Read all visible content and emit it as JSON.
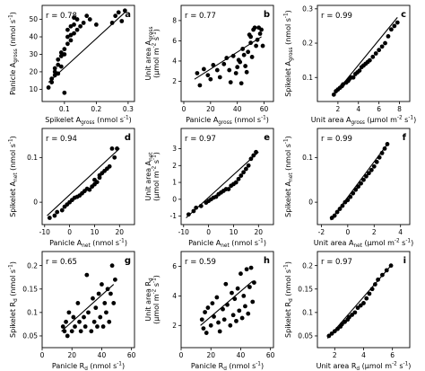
{
  "chart_data": [
    {
      "id": "a",
      "type": "scatter",
      "panel_letter": "a",
      "r_label": "r = 0.78",
      "xlabel": "Spikelet A_gross (nmol s^-1)",
      "ylabel": "Panicle A_gross (nmol s^-1)",
      "xlim": [
        0.03,
        0.32
      ],
      "ylim": [
        3,
        58
      ],
      "xticks": [
        0.1,
        0.2,
        0.3
      ],
      "yticks": [
        10,
        20,
        30,
        40,
        50
      ],
      "points": [
        [
          0.05,
          11
        ],
        [
          0.06,
          14
        ],
        [
          0.06,
          16
        ],
        [
          0.07,
          18
        ],
        [
          0.07,
          20
        ],
        [
          0.07,
          22
        ],
        [
          0.08,
          24
        ],
        [
          0.08,
          27
        ],
        [
          0.08,
          19
        ],
        [
          0.09,
          29
        ],
        [
          0.09,
          23
        ],
        [
          0.09,
          31
        ],
        [
          0.1,
          8
        ],
        [
          0.1,
          30
        ],
        [
          0.1,
          33
        ],
        [
          0.11,
          40
        ],
        [
          0.11,
          36
        ],
        [
          0.11,
          44
        ],
        [
          0.12,
          38
        ],
        [
          0.12,
          41
        ],
        [
          0.12,
          46
        ],
        [
          0.13,
          42
        ],
        [
          0.13,
          47
        ],
        [
          0.13,
          51
        ],
        [
          0.14,
          44
        ],
        [
          0.14,
          50
        ],
        [
          0.15,
          46
        ],
        [
          0.16,
          48
        ],
        [
          0.17,
          52
        ],
        [
          0.18,
          50
        ],
        [
          0.2,
          47
        ],
        [
          0.25,
          48
        ],
        [
          0.26,
          52
        ],
        [
          0.27,
          54
        ],
        [
          0.28,
          49
        ],
        [
          0.29,
          55
        ]
      ],
      "fit": [
        [
          0.05,
          14
        ],
        [
          0.29,
          54
        ]
      ]
    },
    {
      "id": "b",
      "type": "scatter",
      "panel_letter": "b",
      "r_label": "r = 0.77",
      "xlabel": "Panicle A_gross (nmol s^-1)",
      "ylabel": "Unit area A_gross (µmol m^-2 s^-1)",
      "xlim": [
        -2,
        67
      ],
      "ylim": [
        0,
        9.5
      ],
      "xticks": [
        0,
        20,
        40,
        60
      ],
      "yticks": [
        2,
        4,
        6,
        8
      ],
      "points": [
        [
          10,
          2.8
        ],
        [
          12,
          1.6
        ],
        [
          15,
          3.2
        ],
        [
          18,
          2.6
        ],
        [
          20,
          2.2
        ],
        [
          22,
          3.6
        ],
        [
          25,
          3.1
        ],
        [
          27,
          2.4
        ],
        [
          30,
          3.7
        ],
        [
          32,
          4.3
        ],
        [
          34,
          3.1
        ],
        [
          35,
          1.9
        ],
        [
          37,
          4.5
        ],
        [
          39,
          2.8
        ],
        [
          40,
          3.4
        ],
        [
          41,
          4.1
        ],
        [
          42,
          3.9
        ],
        [
          43,
          1.8
        ],
        [
          44,
          5.2
        ],
        [
          45,
          4.6
        ],
        [
          46,
          3.5
        ],
        [
          47,
          2.9
        ],
        [
          48,
          4.9
        ],
        [
          49,
          6.6
        ],
        [
          50,
          5.8
        ],
        [
          50,
          6.4
        ],
        [
          51,
          4.4
        ],
        [
          52,
          7.1
        ],
        [
          53,
          7.3
        ],
        [
          54,
          5.5
        ],
        [
          55,
          6.1
        ],
        [
          56,
          7.3
        ],
        [
          57,
          6.7
        ],
        [
          58,
          7.1
        ],
        [
          59,
          5.5
        ]
      ],
      "fit": [
        [
          8,
          2.2
        ],
        [
          58,
          6.4
        ]
      ]
    },
    {
      "id": "c",
      "type": "scatter",
      "panel_letter": "c",
      "r_label": "r = 0.99",
      "xlabel": "Unit area A_gross (µmol m^-2 s^-1)",
      "ylabel": "Spikelet A_gross (nmol s^-1)",
      "xlim": [
        0,
        9
      ],
      "ylim": [
        0.03,
        0.31
      ],
      "xticks": [
        2,
        4,
        6,
        8
      ],
      "yticks": [
        0.1,
        0.2,
        0.3
      ],
      "points": [
        [
          1.6,
          0.05
        ],
        [
          1.8,
          0.06
        ],
        [
          2.0,
          0.065
        ],
        [
          2.2,
          0.07
        ],
        [
          2.4,
          0.075
        ],
        [
          2.5,
          0.08
        ],
        [
          2.8,
          0.085
        ],
        [
          3.0,
          0.09
        ],
        [
          3.1,
          0.095
        ],
        [
          3.3,
          0.1
        ],
        [
          3.5,
          0.1
        ],
        [
          3.7,
          0.11
        ],
        [
          3.9,
          0.115
        ],
        [
          4.1,
          0.12
        ],
        [
          4.3,
          0.13
        ],
        [
          4.5,
          0.135
        ],
        [
          4.7,
          0.14
        ],
        [
          4.9,
          0.145
        ],
        [
          5.1,
          0.15
        ],
        [
          5.4,
          0.16
        ],
        [
          5.7,
          0.17
        ],
        [
          6.0,
          0.18
        ],
        [
          6.3,
          0.19
        ],
        [
          6.6,
          0.2
        ],
        [
          6.9,
          0.22
        ],
        [
          7.2,
          0.24
        ],
        [
          7.5,
          0.25
        ],
        [
          7.8,
          0.26
        ]
      ],
      "fit": [
        [
          1.5,
          0.045
        ],
        [
          7.8,
          0.275
        ]
      ]
    },
    {
      "id": "d",
      "type": "scatter",
      "panel_letter": "d",
      "r_label": "r = 0.94",
      "xlabel": "Panicle A_net (nmol s^-1)",
      "ylabel": "Spikelet A_net (nmol s^-1)",
      "xlim": [
        -11,
        26
      ],
      "ylim": [
        -0.05,
        0.165
      ],
      "xticks": [
        -10,
        0,
        10,
        20
      ],
      "yticks": [
        0.0,
        0.1
      ],
      "points": [
        [
          -8,
          -0.035
        ],
        [
          -6,
          -0.03
        ],
        [
          -5,
          -0.022
        ],
        [
          -3,
          -0.018
        ],
        [
          -2,
          -0.01
        ],
        [
          -1,
          -0.005
        ],
        [
          0,
          0.0
        ],
        [
          1,
          0.005
        ],
        [
          2,
          0.01
        ],
        [
          3,
          0.012
        ],
        [
          4,
          0.015
        ],
        [
          5,
          0.02
        ],
        [
          6,
          0.025
        ],
        [
          7,
          0.03
        ],
        [
          8,
          0.028
        ],
        [
          9,
          0.035
        ],
        [
          10,
          0.04
        ],
        [
          10,
          0.05
        ],
        [
          11,
          0.045
        ],
        [
          12,
          0.055
        ],
        [
          12,
          0.06
        ],
        [
          13,
          0.065
        ],
        [
          14,
          0.07
        ],
        [
          15,
          0.075
        ],
        [
          16,
          0.08
        ],
        [
          17,
          0.12
        ],
        [
          18,
          0.1
        ],
        [
          19,
          0.12
        ]
      ],
      "fit": [
        [
          -9,
          -0.03
        ],
        [
          20,
          0.12
        ]
      ]
    },
    {
      "id": "e",
      "type": "scatter",
      "panel_letter": "e",
      "r_label": "r = 0.97",
      "xlabel": "Panicle A_net (nmol s^-1)",
      "ylabel": "Unit area A_net (µmol m^-2 s^-1)",
      "xlim": [
        -11,
        26
      ],
      "ylim": [
        -1.5,
        4.2
      ],
      "xticks": [
        -10,
        0,
        10,
        20
      ],
      "yticks": [
        -1,
        0,
        1,
        2,
        3
      ],
      "points": [
        [
          -8,
          -0.9
        ],
        [
          -6,
          -0.7
        ],
        [
          -5,
          -0.5
        ],
        [
          -3,
          -0.4
        ],
        [
          -1,
          -0.2
        ],
        [
          0,
          -0.1
        ],
        [
          1,
          0.0
        ],
        [
          2,
          0.1
        ],
        [
          3,
          0.15
        ],
        [
          4,
          0.3
        ],
        [
          5,
          0.4
        ],
        [
          6,
          0.5
        ],
        [
          7,
          0.6
        ],
        [
          8,
          0.6
        ],
        [
          9,
          0.8
        ],
        [
          10,
          0.9
        ],
        [
          11,
          1.0
        ],
        [
          12,
          1.2
        ],
        [
          13,
          1.4
        ],
        [
          14,
          1.6
        ],
        [
          15,
          1.8
        ],
        [
          16,
          2.0
        ],
        [
          17,
          2.4
        ],
        [
          18,
          2.6
        ],
        [
          19,
          2.8
        ]
      ],
      "fit": [
        [
          -9,
          -1.1
        ],
        [
          20,
          2.8
        ]
      ]
    },
    {
      "id": "f",
      "type": "scatter",
      "panel_letter": "f",
      "r_label": "r = 0.99",
      "xlabel": "Unit area A_net (µmol m^-2 s^-1)",
      "ylabel": "Spikelet A_net (nmol s^-1)",
      "xlim": [
        -2.3,
        4.7
      ],
      "ylim": [
        -0.05,
        0.165
      ],
      "xticks": [
        -2,
        0,
        2,
        4
      ],
      "yticks": [
        0.0,
        0.1
      ],
      "points": [
        [
          -1.2,
          -0.035
        ],
        [
          -1.0,
          -0.03
        ],
        [
          -0.8,
          -0.022
        ],
        [
          -0.6,
          -0.015
        ],
        [
          -0.4,
          -0.008
        ],
        [
          -0.2,
          0.0
        ],
        [
          0.0,
          0.005
        ],
        [
          0.2,
          0.012
        ],
        [
          0.4,
          0.02
        ],
        [
          0.6,
          0.028
        ],
        [
          0.8,
          0.035
        ],
        [
          1.0,
          0.042
        ],
        [
          1.2,
          0.05
        ],
        [
          1.4,
          0.058
        ],
        [
          1.6,
          0.065
        ],
        [
          1.8,
          0.072
        ],
        [
          2.0,
          0.08
        ],
        [
          2.2,
          0.09
        ],
        [
          2.4,
          0.1
        ],
        [
          2.6,
          0.11
        ],
        [
          2.8,
          0.12
        ],
        [
          3.0,
          0.13
        ]
      ],
      "fit": [
        [
          -1.3,
          -0.04
        ],
        [
          3.0,
          0.13
        ]
      ]
    },
    {
      "id": "g",
      "type": "scatter",
      "panel_letter": "g",
      "r_label": "r = 0.65",
      "xlabel": "Panicle R_d (nmol s^-1)",
      "ylabel": "Spikelet R_d (nmol s^-1)",
      "xlim": [
        0,
        62
      ],
      "ylim": [
        0.025,
        0.23
      ],
      "xticks": [
        0,
        20,
        40,
        60
      ],
      "yticks": [
        0.05,
        0.1,
        0.15,
        0.2
      ],
      "points": [
        [
          14,
          0.07
        ],
        [
          15,
          0.06
        ],
        [
          16,
          0.08
        ],
        [
          17,
          0.05
        ],
        [
          18,
          0.1
        ],
        [
          20,
          0.06
        ],
        [
          21,
          0.09
        ],
        [
          22,
          0.07
        ],
        [
          24,
          0.12
        ],
        [
          25,
          0.08
        ],
        [
          26,
          0.06
        ],
        [
          28,
          0.09
        ],
        [
          29,
          0.07
        ],
        [
          30,
          0.18
        ],
        [
          31,
          0.1
        ],
        [
          33,
          0.06
        ],
        [
          34,
          0.13
        ],
        [
          35,
          0.08
        ],
        [
          36,
          0.11
        ],
        [
          37,
          0.07
        ],
        [
          38,
          0.14
        ],
        [
          39,
          0.09
        ],
        [
          40,
          0.16
        ],
        [
          41,
          0.07
        ],
        [
          42,
          0.12
        ],
        [
          43,
          0.1
        ],
        [
          44,
          0.15
        ],
        [
          45,
          0.08
        ],
        [
          46,
          0.14
        ],
        [
          47,
          0.2
        ],
        [
          48,
          0.12
        ],
        [
          49,
          0.17
        ]
      ],
      "fit": [
        [
          13,
          0.06
        ],
        [
          48,
          0.16
        ]
      ]
    },
    {
      "id": "h",
      "type": "scatter",
      "panel_letter": "h",
      "r_label": "r = 0.59",
      "xlabel": "Panicle R_d (nmol s^-1)",
      "ylabel": "Unit area R_d (µmol m^-2 s^-1)",
      "xlim": [
        0,
        62
      ],
      "ylim": [
        0.5,
        7.0
      ],
      "xticks": [
        0,
        20,
        40,
        60
      ],
      "yticks": [
        2,
        4,
        6
      ],
      "points": [
        [
          14,
          2.4
        ],
        [
          15,
          1.8
        ],
        [
          16,
          2.9
        ],
        [
          17,
          1.5
        ],
        [
          18,
          3.2
        ],
        [
          20,
          2.0
        ],
        [
          21,
          3.5
        ],
        [
          22,
          2.6
        ],
        [
          24,
          3.9
        ],
        [
          25,
          2.2
        ],
        [
          26,
          1.6
        ],
        [
          28,
          3.1
        ],
        [
          29,
          2.4
        ],
        [
          30,
          4.8
        ],
        [
          31,
          3.4
        ],
        [
          33,
          2.0
        ],
        [
          34,
          4.2
        ],
        [
          35,
          2.7
        ],
        [
          36,
          3.8
        ],
        [
          37,
          2.3
        ],
        [
          38,
          4.5
        ],
        [
          39,
          3.0
        ],
        [
          40,
          5.5
        ],
        [
          41,
          2.5
        ],
        [
          42,
          4.0
        ],
        [
          43,
          3.3
        ],
        [
          44,
          5.8
        ],
        [
          45,
          2.8
        ],
        [
          46,
          4.6
        ],
        [
          47,
          5.9
        ],
        [
          48,
          3.6
        ],
        [
          49,
          4.9
        ]
      ],
      "fit": [
        [
          13,
          2.0
        ],
        [
          48,
          5.0
        ]
      ]
    },
    {
      "id": "i",
      "type": "scatter",
      "panel_letter": "i",
      "r_label": "r = 0.97",
      "xlabel": "Unit area R_d (µmol m^-2 s^-1)",
      "ylabel": "Spikelet R_d (nmol s^-1)",
      "xlim": [
        0.8,
        7.2
      ],
      "ylim": [
        0.025,
        0.23
      ],
      "xticks": [
        2,
        4,
        6
      ],
      "yticks": [
        0.05,
        0.1,
        0.15,
        0.2
      ],
      "points": [
        [
          1.6,
          0.05
        ],
        [
          1.8,
          0.055
        ],
        [
          2.0,
          0.06
        ],
        [
          2.2,
          0.065
        ],
        [
          2.4,
          0.07
        ],
        [
          2.5,
          0.075
        ],
        [
          2.7,
          0.08
        ],
        [
          2.9,
          0.085
        ],
        [
          3.0,
          0.09
        ],
        [
          3.2,
          0.095
        ],
        [
          3.4,
          0.1
        ],
        [
          3.6,
          0.11
        ],
        [
          3.8,
          0.115
        ],
        [
          4.0,
          0.12
        ],
        [
          4.2,
          0.13
        ],
        [
          4.4,
          0.14
        ],
        [
          4.6,
          0.15
        ],
        [
          4.8,
          0.16
        ],
        [
          5.0,
          0.17
        ],
        [
          5.3,
          0.18
        ],
        [
          5.6,
          0.19
        ],
        [
          5.9,
          0.2
        ]
      ],
      "fit": [
        [
          1.5,
          0.045
        ],
        [
          5.9,
          0.2
        ]
      ]
    }
  ]
}
